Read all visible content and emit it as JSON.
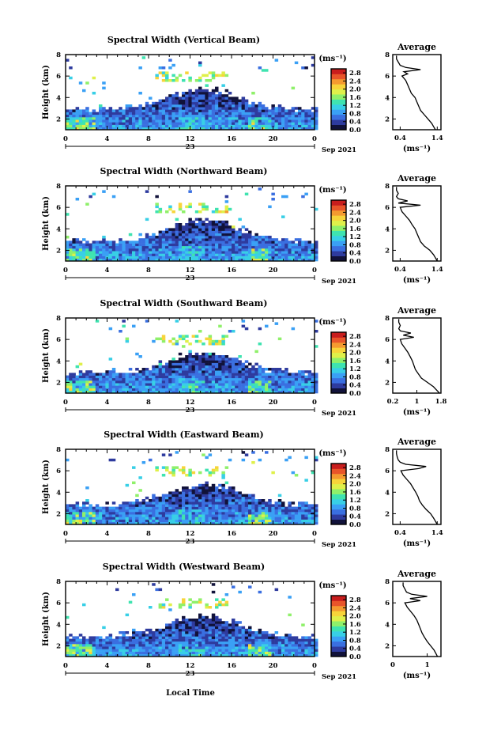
{
  "figure": {
    "xlabel_bottom": "Local Time"
  },
  "colors": {
    "colormap": [
      "#11123a",
      "#2e3b9e",
      "#3a6fe0",
      "#3aa0f5",
      "#38cfe6",
      "#3fe3b0",
      "#8ff06a",
      "#dff04a",
      "#f7d43a",
      "#f49a30",
      "#e8552a",
      "#c81d1d"
    ],
    "average_line": "#000000",
    "frame": "#000000"
  },
  "chart_data": [
    {
      "type": "heatmap",
      "title": "Spectral Width (Vertical Beam)",
      "ylabel": "Height (km)",
      "yticks": [
        "2",
        "4",
        "6",
        "8"
      ],
      "ylim": [
        1,
        8
      ],
      "xticks": [
        "0",
        "4",
        "8",
        "12",
        "16",
        "20",
        "0"
      ],
      "xlim": [
        0,
        24
      ],
      "day_label": "23",
      "date_label": "Sep 2021",
      "colorbar": {
        "unit": "(ms⁻¹)",
        "ticks": [
          "0.0",
          "0.4",
          "0.8",
          "1.2",
          "1.6",
          "2.0",
          "2.4",
          "2.8"
        ],
        "range": [
          0,
          3.0
        ]
      },
      "average_profile": {
        "title": "Average",
        "xticks": [
          "0.4",
          "1.4"
        ],
        "xlim": [
          0.2,
          1.5
        ],
        "xlabel": "(ms⁻¹)",
        "yticks": [
          "2",
          "4",
          "6",
          "8"
        ],
        "height_km": [
          1.0,
          1.3,
          1.6,
          2.0,
          2.4,
          2.8,
          3.2,
          3.6,
          4.0,
          4.4,
          4.8,
          5.2,
          5.6,
          6.0,
          6.2,
          6.4,
          6.6,
          6.8,
          7.0,
          7.3,
          7.6,
          7.9
        ],
        "width_ms": [
          1.35,
          1.3,
          1.25,
          1.15,
          1.05,
          0.95,
          0.9,
          0.85,
          0.8,
          0.7,
          0.65,
          0.6,
          0.55,
          0.45,
          0.6,
          0.5,
          0.95,
          0.55,
          0.4,
          0.35,
          0.3,
          0.3
        ]
      }
    },
    {
      "type": "heatmap",
      "title": "Spectral Width (Northward Beam)",
      "ylabel": "Height (km)",
      "yticks": [
        "2",
        "4",
        "6",
        "8"
      ],
      "ylim": [
        1,
        8
      ],
      "xticks": [
        "0",
        "4",
        "8",
        "12",
        "16",
        "20",
        "0"
      ],
      "xlim": [
        0,
        24
      ],
      "day_label": "23",
      "date_label": "Sep 2021",
      "colorbar": {
        "unit": "(ms⁻¹)",
        "ticks": [
          "0.0",
          "0.4",
          "0.8",
          "1.2",
          "1.6",
          "2.0",
          "2.4",
          "2.8"
        ],
        "range": [
          0,
          3.0
        ]
      },
      "average_profile": {
        "title": "Average",
        "xticks": [
          "0.4",
          "1.4"
        ],
        "xlim": [
          0.2,
          1.5
        ],
        "xlabel": "(ms⁻¹)",
        "yticks": [
          "2",
          "4",
          "6",
          "8"
        ],
        "height_km": [
          1.0,
          1.3,
          1.6,
          2.0,
          2.4,
          2.8,
          3.2,
          3.6,
          4.0,
          4.4,
          4.8,
          5.2,
          5.6,
          6.0,
          6.2,
          6.4,
          6.6,
          6.8,
          7.0,
          7.3,
          7.6,
          7.9
        ],
        "width_ms": [
          1.4,
          1.35,
          1.3,
          1.2,
          1.05,
          0.95,
          0.9,
          0.85,
          0.8,
          0.72,
          0.65,
          0.55,
          0.45,
          0.4,
          0.95,
          0.35,
          0.6,
          0.35,
          0.3,
          0.35,
          0.3,
          0.3
        ]
      }
    },
    {
      "type": "heatmap",
      "title": "Spectral Width (Southward Beam)",
      "ylabel": "Height (km)",
      "yticks": [
        "2",
        "4",
        "6",
        "8"
      ],
      "ylim": [
        1,
        8
      ],
      "xticks": [
        "0",
        "4",
        "8",
        "12",
        "16",
        "20",
        "0"
      ],
      "xlim": [
        0,
        24
      ],
      "day_label": "23",
      "date_label": "Sep 2021",
      "colorbar": {
        "unit": "(ms⁻¹)",
        "ticks": [
          "0.0",
          "0.4",
          "0.8",
          "1.2",
          "1.6",
          "2.0",
          "2.4",
          "2.8"
        ],
        "range": [
          0,
          3.0
        ]
      },
      "average_profile": {
        "title": "Average",
        "xticks": [
          "0.2",
          "1",
          "1.8"
        ],
        "xlim": [
          0.2,
          1.8
        ],
        "xlabel": "(ms⁻¹)",
        "yticks": [
          "2",
          "4",
          "6",
          "8"
        ],
        "height_km": [
          1.0,
          1.3,
          1.6,
          2.0,
          2.4,
          2.8,
          3.2,
          3.6,
          4.0,
          4.4,
          4.8,
          5.2,
          5.6,
          6.0,
          6.2,
          6.4,
          6.6,
          6.8,
          7.0,
          7.3,
          7.6,
          7.9
        ],
        "width_ms": [
          1.75,
          1.65,
          1.55,
          1.35,
          1.15,
          1.05,
          0.95,
          0.9,
          0.85,
          0.78,
          0.7,
          0.6,
          0.5,
          0.45,
          0.9,
          0.55,
          0.8,
          0.45,
          0.4,
          0.45,
          0.4,
          0.4
        ]
      }
    },
    {
      "type": "heatmap",
      "title": "Spectral Width (Eastward Beam)",
      "ylabel": "Height (km)",
      "yticks": [
        "2",
        "4",
        "6",
        "8"
      ],
      "ylim": [
        1,
        8
      ],
      "xticks": [
        "0",
        "4",
        "8",
        "12",
        "16",
        "20",
        "0"
      ],
      "xlim": [
        0,
        24
      ],
      "day_label": "23",
      "date_label": "Sep 2021",
      "colorbar": {
        "unit": "(ms⁻¹)",
        "ticks": [
          "0.0",
          "0.4",
          "0.8",
          "1.2",
          "1.6",
          "2.0",
          "2.4",
          "2.8"
        ],
        "range": [
          0,
          3.0
        ]
      },
      "average_profile": {
        "title": "Average",
        "xticks": [
          "0.4",
          "1.4"
        ],
        "xlim": [
          0.2,
          1.5
        ],
        "xlabel": "(ms⁻¹)",
        "yticks": [
          "2",
          "4",
          "6",
          "8"
        ],
        "height_km": [
          1.0,
          1.3,
          1.6,
          2.0,
          2.4,
          2.8,
          3.2,
          3.6,
          4.0,
          4.4,
          4.8,
          5.2,
          5.6,
          6.0,
          6.2,
          6.4,
          6.6,
          6.8,
          7.0,
          7.3,
          7.6,
          7.9
        ],
        "width_ms": [
          1.4,
          1.35,
          1.3,
          1.22,
          1.1,
          1.0,
          0.92,
          0.88,
          0.82,
          0.75,
          0.68,
          0.58,
          0.48,
          0.42,
          0.9,
          1.1,
          0.55,
          0.4,
          0.35,
          0.32,
          0.3,
          0.3
        ]
      }
    },
    {
      "type": "heatmap",
      "title": "Spectral Width (Westward Beam)",
      "ylabel": "Height (km)",
      "yticks": [
        "2",
        "4",
        "6",
        "8"
      ],
      "ylim": [
        1,
        8
      ],
      "xticks": [
        "0",
        "4",
        "8",
        "12",
        "16",
        "20",
        "0"
      ],
      "xlim": [
        0,
        24
      ],
      "day_label": "23",
      "date_label": "Sep 2021",
      "colorbar": {
        "unit": "(ms⁻¹)",
        "ticks": [
          "0.0",
          "0.4",
          "0.8",
          "1.2",
          "1.6",
          "2.0",
          "2.4",
          "2.8"
        ],
        "range": [
          0,
          3.0
        ]
      },
      "average_profile": {
        "title": "Average",
        "xticks": [
          "0",
          "1"
        ],
        "xlim": [
          0,
          1.4
        ],
        "xlabel": "(ms⁻¹)",
        "yticks": [
          "2",
          "4",
          "6",
          "8"
        ],
        "height_km": [
          1.0,
          1.3,
          1.6,
          2.0,
          2.4,
          2.8,
          3.2,
          3.6,
          4.0,
          4.4,
          4.8,
          5.2,
          5.6,
          6.0,
          6.2,
          6.4,
          6.6,
          6.8,
          7.0,
          7.3,
          7.6,
          7.9
        ],
        "width_ms": [
          1.3,
          1.25,
          1.2,
          1.1,
          1.0,
          0.92,
          0.85,
          0.8,
          0.75,
          0.7,
          0.62,
          0.52,
          0.42,
          0.35,
          0.8,
          0.5,
          1.0,
          0.55,
          0.4,
          0.35,
          0.3,
          0.3
        ]
      }
    }
  ]
}
